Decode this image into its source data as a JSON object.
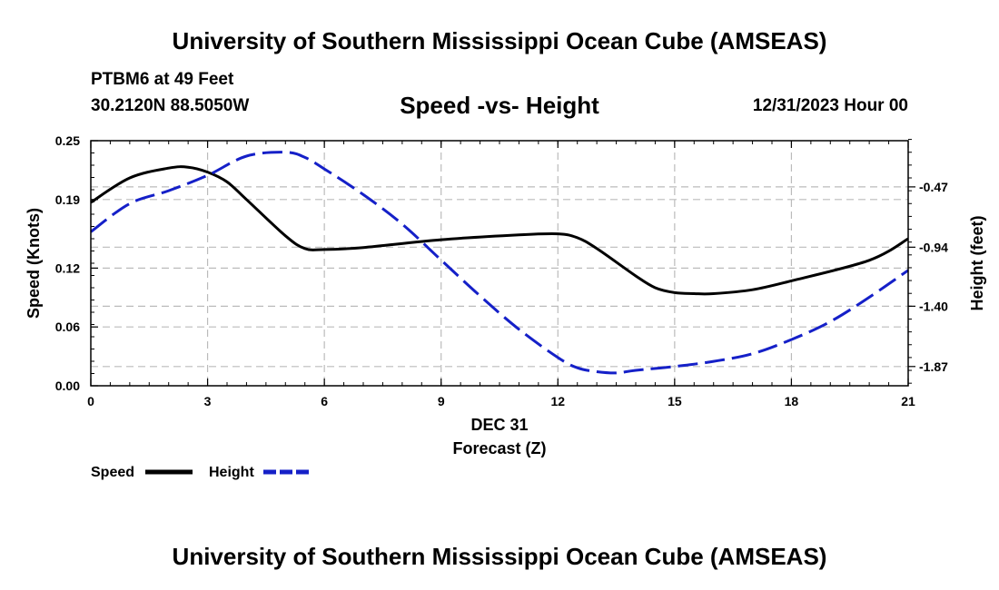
{
  "header": {
    "title": "University of Southern Mississippi Ocean Cube (AMSEAS)",
    "station": "PTBM6 at 49 Feet",
    "coords": "30.2120N  88.5050W",
    "subtitle": "Speed -vs- Height",
    "datetime": "12/31/2023 Hour 00"
  },
  "footer": {
    "title": "University of Southern Mississippi Ocean Cube (AMSEAS)"
  },
  "legend": {
    "speed_label": "Speed",
    "height_label": "Height"
  },
  "chart_data": {
    "type": "line",
    "title": "Speed -vs- Height",
    "xlabel_date": "DEC 31",
    "xlabel": "Forecast (Z)",
    "ylabel_left": "Speed (Knots)",
    "ylabel_right": "Height (feet)",
    "xlim": [
      0,
      21
    ],
    "ylim_left": [
      0,
      0.25
    ],
    "ylim_right": [
      -2.02,
      -0.11
    ],
    "x_ticks": [
      0,
      3,
      6,
      9,
      12,
      15,
      18,
      21
    ],
    "x_tick_labels": [
      "0",
      "3",
      "6",
      "9",
      "12",
      "15",
      "18",
      "21"
    ],
    "y_left_ticks": [
      0.0,
      0.06,
      0.12,
      0.19,
      0.25
    ],
    "y_left_tick_labels": [
      "0.00",
      "0.06",
      "0.12",
      "0.19",
      "0.25"
    ],
    "y_right_ticks": [
      -0.47,
      -0.94,
      -1.4,
      -1.87
    ],
    "y_right_tick_labels": [
      "-0.47",
      "-0.94",
      "-1.40",
      "-1.87"
    ],
    "grid": true,
    "series": [
      {
        "name": "Speed",
        "axis": "left",
        "color": "#000000",
        "style": "solid",
        "x": [
          0,
          1,
          2,
          2.5,
          3,
          3.5,
          4,
          5,
          5.5,
          6,
          7,
          9,
          11,
          12,
          12.5,
          13,
          14,
          14.5,
          15,
          15.5,
          16,
          17,
          18,
          20,
          21
        ],
        "values": [
          0.187,
          0.212,
          0.222,
          0.223,
          0.218,
          0.208,
          0.19,
          0.153,
          0.14,
          0.139,
          0.141,
          0.149,
          0.154,
          0.155,
          0.151,
          0.14,
          0.112,
          0.1,
          0.095,
          0.094,
          0.094,
          0.098,
          0.107,
          0.128,
          0.15
        ]
      },
      {
        "name": "Height",
        "axis": "right",
        "color": "#1520C8",
        "style": "dashed",
        "x": [
          0,
          1,
          2,
          3,
          4,
          5,
          5.5,
          6,
          7,
          8,
          9,
          10,
          11,
          12,
          12.5,
          13,
          13.5,
          14,
          15,
          16,
          17,
          18,
          19,
          20,
          21
        ],
        "values": [
          -0.82,
          -0.6,
          -0.5,
          -0.38,
          -0.23,
          -0.2,
          -0.24,
          -0.33,
          -0.53,
          -0.76,
          -1.04,
          -1.32,
          -1.58,
          -1.8,
          -1.88,
          -1.91,
          -1.92,
          -1.9,
          -1.87,
          -1.83,
          -1.77,
          -1.66,
          -1.52,
          -1.33,
          -1.12
        ]
      }
    ]
  }
}
